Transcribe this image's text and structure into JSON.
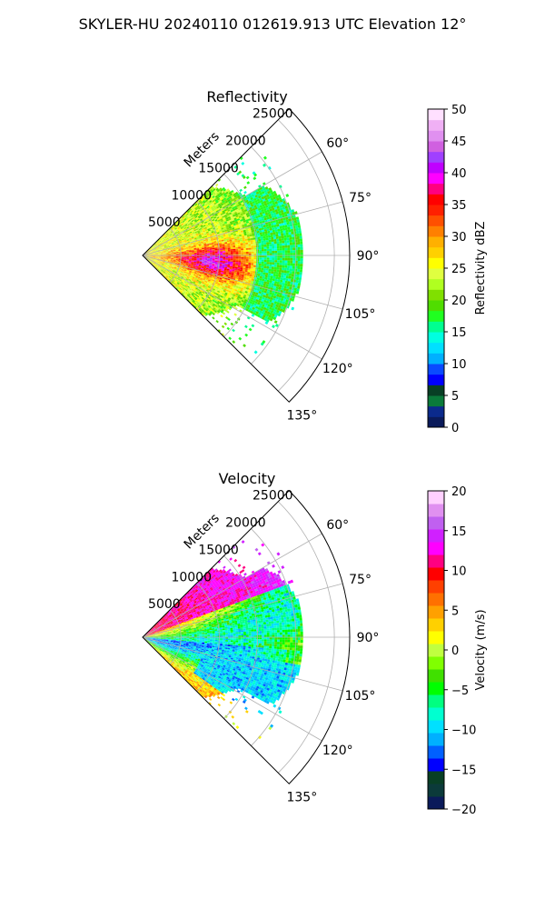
{
  "figure_title": "SKYLER-HU  20240110  012619.913 UTC Elevation 12°",
  "chart_data": [
    {
      "type": "polar-sector",
      "title": "Reflectivity",
      "range_label": "Meters",
      "range_ticks": [
        "5000",
        "10000",
        "15000",
        "20000",
        "25000"
      ],
      "angle_ticks": [
        "60°",
        "75°",
        "90°",
        "105°",
        "120°",
        "135°"
      ],
      "sector_deg": [
        45,
        135
      ],
      "range_max_m": 27000,
      "colorbar": {
        "label": "Reflectivity dBZ",
        "min": 0,
        "max": 50,
        "ticks": [
          "0",
          "5",
          "10",
          "15",
          "20",
          "25",
          "30",
          "35",
          "40",
          "45",
          "50"
        ],
        "colors": [
          "#0a1a5a",
          "#0b2a8c",
          "#0a7a3a",
          "#083f25",
          "#0000ff",
          "#0a4aff",
          "#00b0ff",
          "#00e0ff",
          "#00ffe0",
          "#00ff90",
          "#20ff20",
          "#50dd00",
          "#80e000",
          "#b0ff20",
          "#e0ff40",
          "#ffff00",
          "#ffd000",
          "#ffb000",
          "#ff8000",
          "#ff5000",
          "#ff2000",
          "#ff0000",
          "#ff0080",
          "#ff00ff",
          "#c000ff",
          "#a040ff",
          "#d060e0",
          "#e090f0",
          "#f0b0f5",
          "#ffe0ff"
        ]
      }
    },
    {
      "type": "polar-sector",
      "title": "Velocity",
      "range_label": "Meters",
      "range_ticks": [
        "5000",
        "10000",
        "15000",
        "20000",
        "25000"
      ],
      "angle_ticks": [
        "60°",
        "75°",
        "90°",
        "105°",
        "120°",
        "135°"
      ],
      "sector_deg": [
        45,
        135
      ],
      "range_max_m": 27000,
      "colorbar": {
        "label": "Velocity (m/s)",
        "min": -20,
        "max": 20,
        "ticks": [
          "−20",
          "−15",
          "−10",
          "−5",
          "0",
          "5",
          "10",
          "15",
          "20"
        ],
        "colors": [
          "#0a1a5a",
          "#0b3a3a",
          "#083f25",
          "#0000ff",
          "#0060ff",
          "#00b0ff",
          "#00e0ff",
          "#00ffd0",
          "#00ff80",
          "#00ff00",
          "#40e000",
          "#80ff00",
          "#c0ff40",
          "#ffff00",
          "#ffd000",
          "#ffa000",
          "#ff7000",
          "#ff4000",
          "#ff0000",
          "#ff0080",
          "#ff00ff",
          "#d020ff",
          "#c060f0",
          "#e090f0",
          "#ffd0ff"
        ]
      }
    }
  ]
}
